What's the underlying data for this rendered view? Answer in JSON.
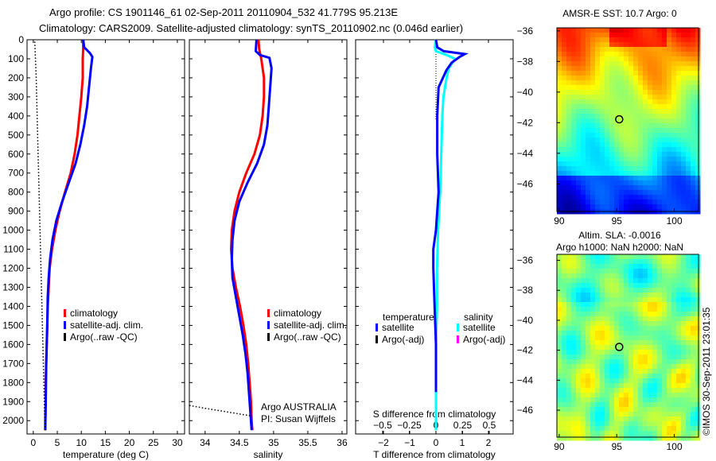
{
  "header": {
    "line1": "Argo profile: CS 1901146_61 02-Sep-2011 20110904_532 41.779S 95.213E",
    "line2": "Climatology: CARS2009. Satellite-adjusted climatology: synTS_20110902.nc (0.046d earlier)"
  },
  "footer": {
    "copyright": "©IMOS 30-Sep-2011 23:01:35",
    "argo_center": "Argo AUSTRALIA",
    "pi": "PI: Susan Wijffels"
  },
  "chart_data": [
    {
      "type": "line",
      "id": "temperature",
      "xlabel": "temperature (deg C)",
      "xlim": [
        -1.3,
        31.5
      ],
      "ylim": [
        0,
        2070
      ],
      "y_reversed": true,
      "xticks": [
        0,
        5,
        10,
        15,
        20,
        25,
        30
      ],
      "yticks": [
        0,
        100,
        200,
        300,
        400,
        500,
        600,
        700,
        800,
        900,
        1000,
        1100,
        1200,
        1300,
        1400,
        1500,
        1600,
        1700,
        1800,
        1900,
        2000
      ],
      "show_ytick_labels": true,
      "legend": [
        {
          "label": "climatology",
          "color": "#ff0000"
        },
        {
          "label": "satellite-adj. clim.",
          "color": "#0000ff"
        },
        {
          "label": "Argo(..raw -QC)",
          "color": "#000000"
        }
      ],
      "series": [
        {
          "name": "climatology",
          "color": "#ff0000",
          "style": "solid",
          "depth": [
            0,
            50,
            100,
            200,
            300,
            400,
            500,
            600,
            700,
            800,
            900,
            1000,
            1100,
            1200,
            1300,
            1400,
            1500,
            1600,
            1700,
            1800,
            1900,
            2000,
            2050
          ],
          "values": [
            10.4,
            10.4,
            10.3,
            10.3,
            10.0,
            9.6,
            9.2,
            8.6,
            7.8,
            6.6,
            5.5,
            4.6,
            3.9,
            3.4,
            3.2,
            3.0,
            2.9,
            2.8,
            2.7,
            2.6,
            2.6,
            2.5,
            2.5
          ]
        },
        {
          "name": "satellite-adj. clim.",
          "color": "#0000ff",
          "style": "solid",
          "depth": [
            0,
            40,
            70,
            90,
            150,
            250,
            350,
            450,
            550,
            650,
            750,
            850,
            950,
            1050,
            1150,
            1250,
            1350,
            1500,
            1700,
            1900,
            2050
          ],
          "values": [
            10.4,
            10.6,
            11.8,
            12.3,
            12.0,
            11.6,
            11.2,
            10.6,
            9.8,
            8.8,
            7.4,
            6.0,
            4.8,
            4.0,
            3.5,
            3.2,
            3.0,
            2.9,
            2.7,
            2.6,
            2.5
          ]
        },
        {
          "name": "Argo(..raw -QC)",
          "color": "#000000",
          "style": "dotted",
          "depth": [
            10,
            200,
            400,
            600,
            800,
            1000,
            1200,
            1400,
            1600,
            1800,
            2000,
            2050
          ],
          "values": [
            0.3,
            0.6,
            0.8,
            1.0,
            1.2,
            1.4,
            1.6,
            1.8,
            2.0,
            2.2,
            2.4,
            2.5
          ]
        }
      ]
    },
    {
      "type": "line",
      "id": "salinity",
      "xlabel": "salinity",
      "xlim": [
        33.77,
        36.07
      ],
      "ylim": [
        0,
        2070
      ],
      "y_reversed": true,
      "xticks": [
        34,
        34.5,
        35,
        35.5,
        36
      ],
      "yticks": [
        0,
        100,
        200,
        300,
        400,
        500,
        600,
        700,
        800,
        900,
        1000,
        1100,
        1200,
        1300,
        1400,
        1500,
        1600,
        1700,
        1800,
        1900,
        2000
      ],
      "show_ytick_labels": false,
      "legend": [
        {
          "label": "climatology",
          "color": "#ff0000"
        },
        {
          "label": "satellite-adj. clim.",
          "color": "#0000ff"
        },
        {
          "label": "Argo(..raw -QC)",
          "color": "#000000"
        }
      ],
      "series": [
        {
          "name": "climatology",
          "color": "#ff0000",
          "style": "solid",
          "depth": [
            0,
            50,
            100,
            200,
            300,
            400,
            500,
            600,
            700,
            800,
            900,
            1000,
            1100,
            1200,
            1300,
            1400,
            1500,
            1600,
            1700,
            1800,
            1900,
            2000,
            2050
          ],
          "values": [
            34.78,
            34.79,
            34.82,
            34.86,
            34.86,
            34.84,
            34.8,
            34.72,
            34.6,
            34.5,
            34.43,
            34.39,
            34.38,
            34.4,
            34.45,
            34.51,
            34.56,
            34.6,
            34.63,
            34.65,
            34.67,
            34.68,
            34.69
          ]
        },
        {
          "name": "satellite-adj. clim.",
          "color": "#0000ff",
          "style": "solid",
          "depth": [
            0,
            60,
            80,
            95,
            150,
            250,
            350,
            450,
            550,
            650,
            750,
            850,
            950,
            1050,
            1150,
            1250,
            1350,
            1450,
            1550,
            1650,
            1750,
            1850,
            1950,
            2050
          ],
          "values": [
            34.75,
            34.74,
            34.8,
            34.94,
            34.97,
            34.95,
            34.93,
            34.91,
            34.86,
            34.76,
            34.62,
            34.5,
            34.43,
            34.4,
            34.39,
            34.4,
            34.45,
            34.5,
            34.55,
            34.59,
            34.62,
            34.64,
            34.66,
            34.68
          ]
        },
        {
          "name": "Argo(..raw -QC)",
          "color": "#000000",
          "style": "dotted",
          "depth": [
            1920,
            1935,
            1950,
            1965,
            1975
          ],
          "values": [
            33.77,
            34.0,
            34.25,
            34.5,
            34.67
          ]
        }
      ]
    },
    {
      "type": "line",
      "id": "difference",
      "xlabel": "T difference from climatology",
      "x2label": "S difference from climatology",
      "xlim": [
        -3.06,
        2.94
      ],
      "ylim": [
        0,
        2070
      ],
      "y_reversed": true,
      "xticks": [
        -2,
        -1,
        0,
        1,
        2
      ],
      "x2ticks": [
        -0.5,
        -0.25,
        0,
        0.25,
        0.5
      ],
      "x2_scale_per_T": 4.06,
      "yticks": [
        0,
        100,
        200,
        300,
        400,
        500,
        600,
        700,
        800,
        900,
        1000,
        1100,
        1200,
        1300,
        1400,
        1500,
        1600,
        1700,
        1800,
        1900,
        2000
      ],
      "show_ytick_labels": false,
      "legend_temperature_title": "temperature",
      "legend_salinity_title": "salinity",
      "legend": [
        {
          "label": "satellite",
          "color": "#0000ff",
          "group": "temperature"
        },
        {
          "label": "Argo(-adj)",
          "color": "#000000",
          "group": "temperature"
        },
        {
          "label": "satellite",
          "color": "#00ffff",
          "group": "salinity"
        },
        {
          "label": "Argo(-adj)",
          "color": "#ff00ff",
          "group": "salinity"
        }
      ],
      "series": [
        {
          "name": "salinity satellite",
          "axis": "S",
          "color": "#00ffff",
          "style": "solid",
          "depth": [
            0,
            40,
            60,
            80,
            100,
            150,
            200,
            300,
            400,
            600,
            800,
            1000,
            1200,
            1400,
            1600,
            1800,
            2000,
            2050
          ],
          "values": [
            0.0,
            -0.01,
            0.0,
            0.1,
            0.18,
            0.12,
            0.1,
            0.07,
            0.06,
            0.05,
            0.04,
            0.02,
            0.01,
            0.01,
            0.0,
            0.0,
            0.0,
            0.0
          ]
        },
        {
          "name": "temperature satellite",
          "axis": "T",
          "color": "#0000ff",
          "style": "solid",
          "depth": [
            0,
            40,
            60,
            75,
            90,
            120,
            160,
            250,
            400,
            600,
            800,
            900,
            1000,
            1100,
            1200,
            1400,
            1600,
            1800,
            1850
          ],
          "values": [
            0.0,
            0.05,
            0.3,
            1.1,
            0.9,
            0.6,
            0.4,
            0.1,
            0.05,
            0.05,
            0.1,
            0.05,
            0.0,
            -0.1,
            -0.1,
            -0.05,
            0.0,
            0.0,
            0.0
          ]
        }
      ]
    },
    {
      "type": "heatmap",
      "id": "sst-map",
      "title": "AMSR-E SST: 10.7 Argo: 0",
      "xlim": [
        89.8,
        102.1
      ],
      "ylim": [
        -47.8,
        -35.8
      ],
      "xticks": [
        90,
        95,
        100
      ],
      "yticks": [
        -36,
        -38,
        -40,
        -42,
        -44,
        -46
      ],
      "argo_position": [
        95.213,
        -41.779
      ],
      "colormap": "jet"
    },
    {
      "type": "heatmap",
      "id": "sla-map",
      "title1": "Altim. SLA: -0.0016",
      "title2": "Argo h1000: NaN h2000: NaN",
      "xlim": [
        89.8,
        102.1
      ],
      "ylim": [
        -47.8,
        -35.6
      ],
      "xticks": [
        90,
        95,
        100
      ],
      "yticks": [
        -36,
        -38,
        -40,
        -42,
        -44,
        -46
      ],
      "argo_position": [
        95.213,
        -41.779
      ],
      "colormap": "jet"
    }
  ]
}
